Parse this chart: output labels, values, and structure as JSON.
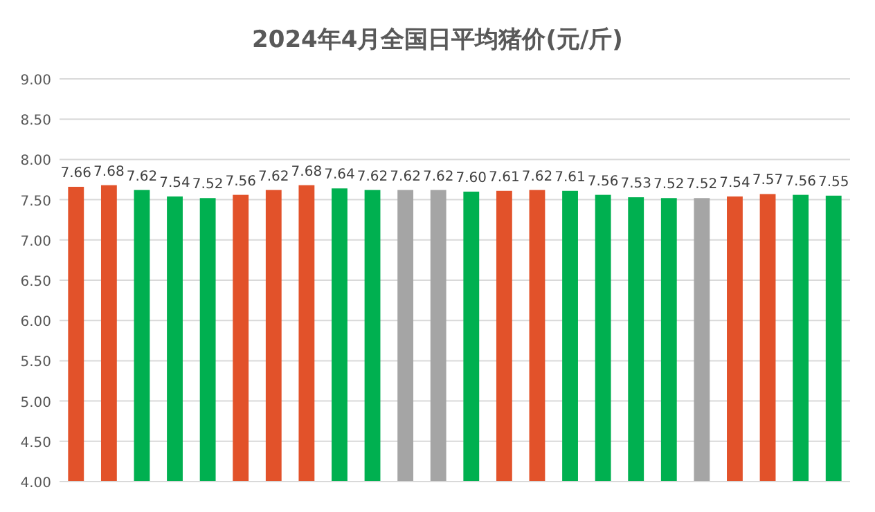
{
  "chart_data": {
    "type": "bar",
    "title": "2024年4月全国日平均猪价(元/斤)",
    "categories": [
      null,
      null,
      null,
      null,
      null,
      null,
      null,
      null,
      null,
      null,
      null,
      null,
      null,
      null,
      null,
      null,
      null,
      null,
      null,
      null,
      null,
      null,
      null,
      null
    ],
    "values": [
      7.66,
      7.68,
      7.62,
      7.54,
      7.52,
      7.56,
      7.62,
      7.68,
      7.64,
      7.62,
      7.62,
      7.62,
      7.6,
      7.61,
      7.62,
      7.61,
      7.56,
      7.53,
      7.52,
      7.52,
      7.54,
      7.57,
      7.56,
      7.55
    ],
    "value_labels": [
      "7.66",
      "7.68",
      "7.62",
      "7.54",
      "7.52",
      "7.56",
      "7.62",
      "7.68",
      "7.64",
      "7.62",
      "7.62",
      "7.62",
      "7.60",
      "7.61",
      "7.62",
      "7.61",
      "7.56",
      "7.53",
      "7.52",
      "7.52",
      "7.54",
      "7.57",
      "7.56",
      "7.55"
    ],
    "colors": [
      "#e2522a",
      "#e2522a",
      "#00b050",
      "#00b050",
      "#00b050",
      "#e2522a",
      "#e2522a",
      "#e2522a",
      "#00b050",
      "#00b050",
      "#a5a5a5",
      "#a5a5a5",
      "#00b050",
      "#e2522a",
      "#e2522a",
      "#00b050",
      "#00b050",
      "#00b050",
      "#00b050",
      "#a5a5a5",
      "#e2522a",
      "#e2522a",
      "#00b050",
      "#00b050"
    ],
    "ylim": [
      4,
      9
    ],
    "yticks": [
      {
        "value": 4,
        "label": "4.00"
      },
      {
        "value": 4.5,
        "label": "4.50"
      },
      {
        "value": 5,
        "label": "5.00"
      },
      {
        "value": 5.5,
        "label": "5.50"
      },
      {
        "value": 6,
        "label": "6.00"
      },
      {
        "value": 6.5,
        "label": "6.50"
      },
      {
        "value": 7,
        "label": "7.00"
      },
      {
        "value": 7.5,
        "label": "7.50"
      },
      {
        "value": 8,
        "label": "8.00"
      },
      {
        "value": 8.5,
        "label": "8.50"
      },
      {
        "value": 9,
        "label": "9.00"
      }
    ],
    "grid": "y"
  }
}
